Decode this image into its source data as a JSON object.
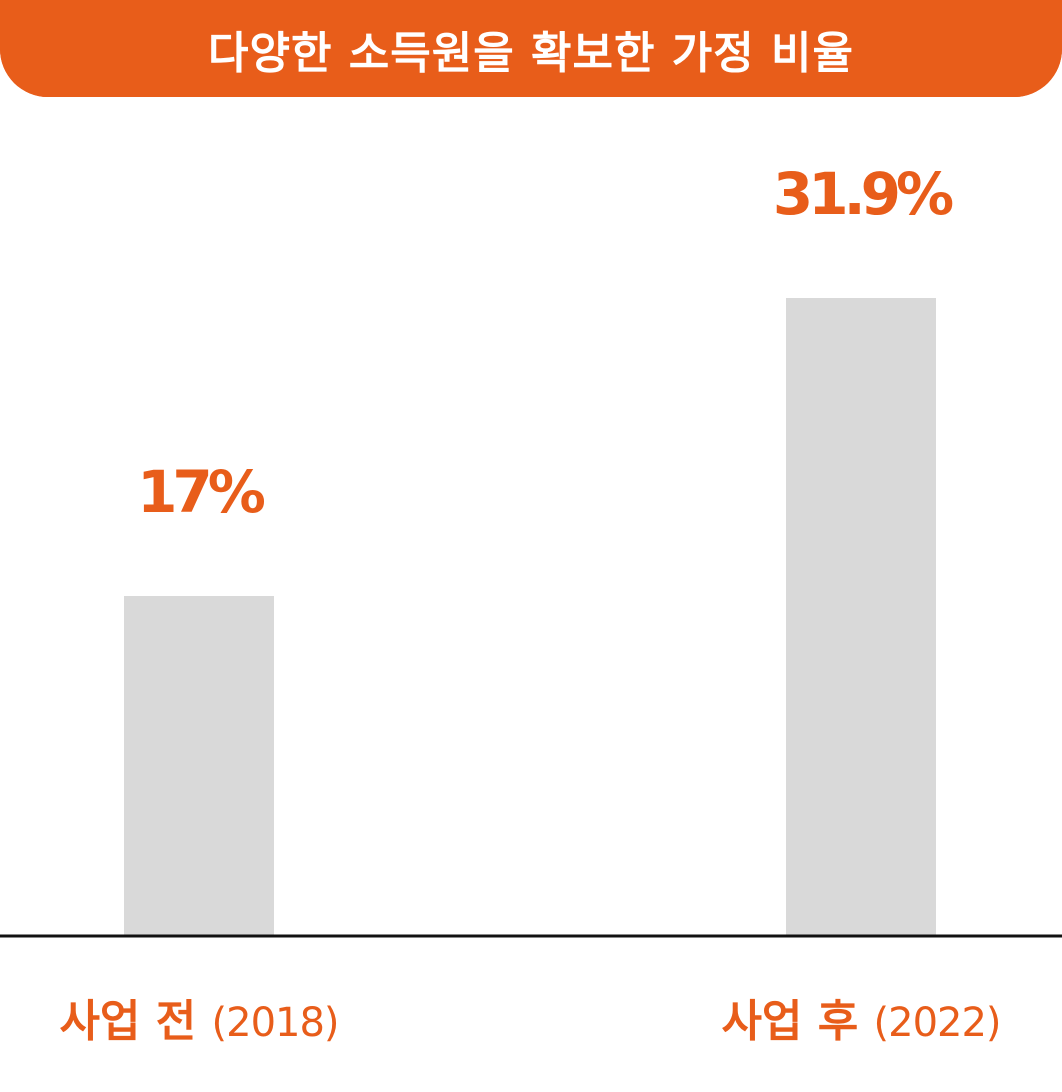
{
  "chart_data": {
    "type": "bar",
    "title": "다양한 소득원을 확보한 가정 비율",
    "categories": [
      {
        "label": "사업 전",
        "sub": "(2018)"
      },
      {
        "label": "사업 후",
        "sub": "(2022)"
      }
    ],
    "values": [
      17,
      31.9
    ],
    "value_labels": [
      "17%",
      "31.9%"
    ],
    "unit": "%",
    "ylim": [
      0,
      40
    ],
    "grid": false,
    "legend": "none"
  },
  "colors": {
    "accent": "#E85D1A",
    "bar": "#D9D9D9",
    "baseline": "#111111",
    "title_text": "#FFFFFF"
  }
}
